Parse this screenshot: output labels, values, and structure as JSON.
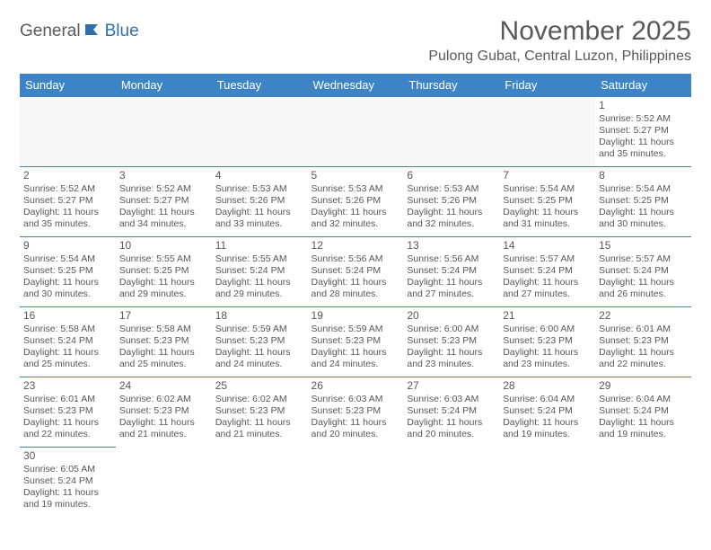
{
  "logo": {
    "part1": "General",
    "part2": "Blue"
  },
  "title": "November 2025",
  "location": "Pulong Gubat, Central Luzon, Philippines",
  "colors": {
    "header_bg": "#3c84c6",
    "header_text": "#ffffff",
    "border": "#3c84c6",
    "text": "#575757",
    "title_text": "#595959",
    "logo_gray": "#5a5a5a",
    "logo_blue": "#2f6fb0"
  },
  "day_headers": [
    "Sunday",
    "Monday",
    "Tuesday",
    "Wednesday",
    "Thursday",
    "Friday",
    "Saturday"
  ],
  "weeks": [
    [
      null,
      null,
      null,
      null,
      null,
      null,
      {
        "n": "1",
        "sr": "Sunrise: 5:52 AM",
        "ss": "Sunset: 5:27 PM",
        "dl": "Daylight: 11 hours and 35 minutes."
      }
    ],
    [
      {
        "n": "2",
        "sr": "Sunrise: 5:52 AM",
        "ss": "Sunset: 5:27 PM",
        "dl": "Daylight: 11 hours and 35 minutes."
      },
      {
        "n": "3",
        "sr": "Sunrise: 5:52 AM",
        "ss": "Sunset: 5:27 PM",
        "dl": "Daylight: 11 hours and 34 minutes."
      },
      {
        "n": "4",
        "sr": "Sunrise: 5:53 AM",
        "ss": "Sunset: 5:26 PM",
        "dl": "Daylight: 11 hours and 33 minutes."
      },
      {
        "n": "5",
        "sr": "Sunrise: 5:53 AM",
        "ss": "Sunset: 5:26 PM",
        "dl": "Daylight: 11 hours and 32 minutes."
      },
      {
        "n": "6",
        "sr": "Sunrise: 5:53 AM",
        "ss": "Sunset: 5:26 PM",
        "dl": "Daylight: 11 hours and 32 minutes."
      },
      {
        "n": "7",
        "sr": "Sunrise: 5:54 AM",
        "ss": "Sunset: 5:25 PM",
        "dl": "Daylight: 11 hours and 31 minutes."
      },
      {
        "n": "8",
        "sr": "Sunrise: 5:54 AM",
        "ss": "Sunset: 5:25 PM",
        "dl": "Daylight: 11 hours and 30 minutes."
      }
    ],
    [
      {
        "n": "9",
        "sr": "Sunrise: 5:54 AM",
        "ss": "Sunset: 5:25 PM",
        "dl": "Daylight: 11 hours and 30 minutes."
      },
      {
        "n": "10",
        "sr": "Sunrise: 5:55 AM",
        "ss": "Sunset: 5:25 PM",
        "dl": "Daylight: 11 hours and 29 minutes."
      },
      {
        "n": "11",
        "sr": "Sunrise: 5:55 AM",
        "ss": "Sunset: 5:24 PM",
        "dl": "Daylight: 11 hours and 29 minutes."
      },
      {
        "n": "12",
        "sr": "Sunrise: 5:56 AM",
        "ss": "Sunset: 5:24 PM",
        "dl": "Daylight: 11 hours and 28 minutes."
      },
      {
        "n": "13",
        "sr": "Sunrise: 5:56 AM",
        "ss": "Sunset: 5:24 PM",
        "dl": "Daylight: 11 hours and 27 minutes."
      },
      {
        "n": "14",
        "sr": "Sunrise: 5:57 AM",
        "ss": "Sunset: 5:24 PM",
        "dl": "Daylight: 11 hours and 27 minutes."
      },
      {
        "n": "15",
        "sr": "Sunrise: 5:57 AM",
        "ss": "Sunset: 5:24 PM",
        "dl": "Daylight: 11 hours and 26 minutes."
      }
    ],
    [
      {
        "n": "16",
        "sr": "Sunrise: 5:58 AM",
        "ss": "Sunset: 5:24 PM",
        "dl": "Daylight: 11 hours and 25 minutes."
      },
      {
        "n": "17",
        "sr": "Sunrise: 5:58 AM",
        "ss": "Sunset: 5:23 PM",
        "dl": "Daylight: 11 hours and 25 minutes."
      },
      {
        "n": "18",
        "sr": "Sunrise: 5:59 AM",
        "ss": "Sunset: 5:23 PM",
        "dl": "Daylight: 11 hours and 24 minutes."
      },
      {
        "n": "19",
        "sr": "Sunrise: 5:59 AM",
        "ss": "Sunset: 5:23 PM",
        "dl": "Daylight: 11 hours and 24 minutes."
      },
      {
        "n": "20",
        "sr": "Sunrise: 6:00 AM",
        "ss": "Sunset: 5:23 PM",
        "dl": "Daylight: 11 hours and 23 minutes."
      },
      {
        "n": "21",
        "sr": "Sunrise: 6:00 AM",
        "ss": "Sunset: 5:23 PM",
        "dl": "Daylight: 11 hours and 23 minutes."
      },
      {
        "n": "22",
        "sr": "Sunrise: 6:01 AM",
        "ss": "Sunset: 5:23 PM",
        "dl": "Daylight: 11 hours and 22 minutes."
      }
    ],
    [
      {
        "n": "23",
        "sr": "Sunrise: 6:01 AM",
        "ss": "Sunset: 5:23 PM",
        "dl": "Daylight: 11 hours and 22 minutes."
      },
      {
        "n": "24",
        "sr": "Sunrise: 6:02 AM",
        "ss": "Sunset: 5:23 PM",
        "dl": "Daylight: 11 hours and 21 minutes."
      },
      {
        "n": "25",
        "sr": "Sunrise: 6:02 AM",
        "ss": "Sunset: 5:23 PM",
        "dl": "Daylight: 11 hours and 21 minutes."
      },
      {
        "n": "26",
        "sr": "Sunrise: 6:03 AM",
        "ss": "Sunset: 5:23 PM",
        "dl": "Daylight: 11 hours and 20 minutes."
      },
      {
        "n": "27",
        "sr": "Sunrise: 6:03 AM",
        "ss": "Sunset: 5:24 PM",
        "dl": "Daylight: 11 hours and 20 minutes."
      },
      {
        "n": "28",
        "sr": "Sunrise: 6:04 AM",
        "ss": "Sunset: 5:24 PM",
        "dl": "Daylight: 11 hours and 19 minutes."
      },
      {
        "n": "29",
        "sr": "Sunrise: 6:04 AM",
        "ss": "Sunset: 5:24 PM",
        "dl": "Daylight: 11 hours and 19 minutes."
      }
    ],
    [
      {
        "n": "30",
        "sr": "Sunrise: 6:05 AM",
        "ss": "Sunset: 5:24 PM",
        "dl": "Daylight: 11 hours and 19 minutes."
      },
      null,
      null,
      null,
      null,
      null,
      null
    ]
  ]
}
